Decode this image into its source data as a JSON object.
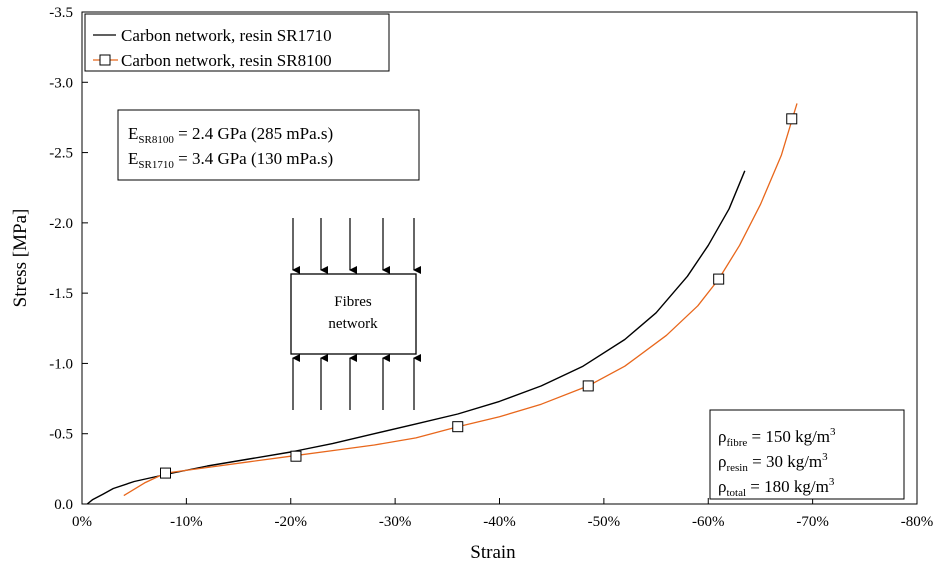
{
  "chart_data": {
    "type": "line",
    "xlabel": "Strain",
    "ylabel": "Stress [MPa]",
    "xlim": [
      0,
      -80
    ],
    "ylim": [
      0,
      -3.5
    ],
    "x_ticks": [
      "0%",
      "-10%",
      "-20%",
      "-30%",
      "-40%",
      "-50%",
      "-60%",
      "-70%",
      "-80%"
    ],
    "y_ticks": [
      "0.0",
      "-0.5",
      "-1.0",
      "-1.5",
      "-2.0",
      "-2.5",
      "-3.0",
      "-3.5"
    ],
    "x_tick_values": [
      0,
      -10,
      -20,
      -30,
      -40,
      -50,
      -60,
      -70,
      -80
    ],
    "y_tick_values": [
      0,
      -0.5,
      -1.0,
      -1.5,
      -2.0,
      -2.5,
      -3.0,
      -3.5
    ],
    "grid": false,
    "legend_position": "top-left",
    "series": [
      {
        "name": "Carbon network, resin SR1710",
        "color": "#000000",
        "marker": "none",
        "x": [
          -0.5,
          -1,
          -2,
          -3,
          -5,
          -8,
          -12,
          -16,
          -20,
          -24,
          -28,
          -32,
          -36,
          -40,
          -44,
          -48,
          -52,
          -55,
          -58,
          -60,
          -62,
          -63.5
        ],
        "y": [
          0.0,
          -0.03,
          -0.07,
          -0.11,
          -0.16,
          -0.21,
          -0.27,
          -0.32,
          -0.37,
          -0.43,
          -0.5,
          -0.57,
          -0.64,
          -0.73,
          -0.84,
          -0.98,
          -1.17,
          -1.36,
          -1.62,
          -1.84,
          -2.1,
          -2.37
        ]
      },
      {
        "name": "Carbon network, resin SR8100",
        "color": "#E8671C",
        "marker": "square",
        "x": [
          -4,
          -6,
          -8,
          -12,
          -16,
          -20,
          -24,
          -28,
          -32,
          -36,
          -40,
          -44,
          -48.5,
          -52,
          -56,
          -59,
          -61,
          -63,
          -65,
          -67,
          -68.5
        ],
        "y": [
          -0.06,
          -0.15,
          -0.22,
          -0.26,
          -0.3,
          -0.34,
          -0.38,
          -0.42,
          -0.47,
          -0.55,
          -0.62,
          -0.71,
          -0.84,
          -0.98,
          -1.2,
          -1.41,
          -1.6,
          -1.84,
          -2.13,
          -2.48,
          -2.85
        ],
        "marker_x": [
          -8,
          -20.5,
          -36,
          -48.5,
          -61,
          -68
        ],
        "marker_y": [
          -0.22,
          -0.34,
          -0.55,
          -0.84,
          -1.6,
          -2.74
        ]
      }
    ],
    "annotations": {
      "modulus": [
        {
          "prefix": "E",
          "sub": "SR8100",
          "text": " = 2.4 GPa (285 mPa.s)"
        },
        {
          "prefix": "E",
          "sub": "SR1710",
          "text": " = 3.4 GPa (130 mPa.s)"
        }
      ],
      "diagram_label": [
        "Fibres",
        "network"
      ],
      "densities": [
        {
          "prefix": "ρ",
          "sub": "fibre",
          "text": " = 150 kg/m",
          "sup": "3"
        },
        {
          "prefix": "ρ",
          "sub": "resin",
          "text": " = 30 kg/m",
          "sup": "3"
        },
        {
          "prefix": "ρ",
          "sub": "total",
          "text": " = 180 kg/m",
          "sup": "3"
        }
      ]
    }
  }
}
